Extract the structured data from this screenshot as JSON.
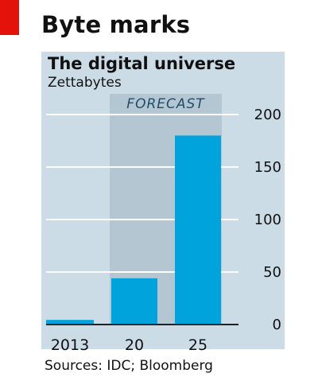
{
  "header": {
    "headline": "Byte marks"
  },
  "chart_data": {
    "type": "bar",
    "title": "The digital universe",
    "subtitle": "Zettabytes",
    "categories": [
      "2013",
      "20",
      "25"
    ],
    "values": [
      4.4,
      44,
      180
    ],
    "ylim": [
      0,
      200
    ],
    "yticks": [
      0,
      50,
      100,
      150,
      200
    ],
    "y_axis_side": "right",
    "grid": true,
    "forecast_label": "FORECAST",
    "forecast_categories": [
      "20",
      "25"
    ]
  },
  "footer": {
    "source": "Sources: IDC; Bloomberg"
  },
  "colors": {
    "accent_red": "#e3120b",
    "panel_background": "#ccdce6",
    "forecast_shade": "#b3c6d1",
    "bar": "#00a3dc",
    "gridline": "#ffffff",
    "baseline": "#222222"
  }
}
